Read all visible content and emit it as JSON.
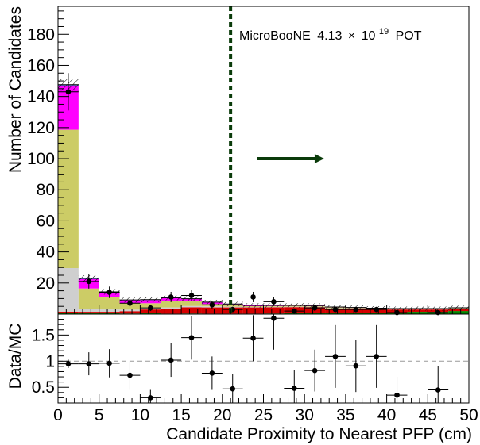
{
  "chart_data": [
    {
      "type": "bar",
      "subtype": "stacked-histogram-with-data-points",
      "annotation": {
        "experiment": "MicroBooNE",
        "exposure_value": "4.13",
        "times": "×",
        "exponent_base": "10",
        "exponent": "19",
        "unit": "POT"
      },
      "cut": {
        "x": 21,
        "direction": "right",
        "color": "#0a3b0a"
      },
      "ylabel": "Number of Candidates",
      "xlabel": "Candidate Proximity to Nearest PFP (cm)",
      "xlim": [
        0,
        50
      ],
      "ylim": [
        0,
        198
      ],
      "x_ticks": [
        0,
        5,
        10,
        15,
        20,
        25,
        30,
        35,
        40,
        45,
        50
      ],
      "y_ticks": [
        20,
        40,
        60,
        80,
        100,
        120,
        140,
        160,
        180
      ],
      "bin_edges": [
        0,
        2.5,
        5,
        7.5,
        10,
        12.5,
        15,
        17.5,
        20,
        22.5,
        25,
        27.5,
        30,
        32.5,
        35,
        37.5,
        40,
        42.5,
        45,
        47.5,
        50
      ],
      "stack_colors": [
        "#008800",
        "#d60000",
        "#cfcfcf",
        "#cccc66",
        "#ff00ff",
        "#6666cc"
      ],
      "stack": [
        [
          0.8,
          0.8,
          28,
          89,
          28,
          1
        ],
        [
          0.5,
          1,
          2,
          13,
          6,
          0.5
        ],
        [
          0.5,
          1,
          1.5,
          8,
          3,
          0.3
        ],
        [
          0.4,
          1.5,
          1,
          4,
          2,
          0.2
        ],
        [
          0.5,
          2.5,
          1,
          3,
          2,
          0.3
        ],
        [
          0.3,
          3,
          1,
          4,
          2,
          0.2
        ],
        [
          0.4,
          4,
          0.8,
          3,
          1.5,
          0.2
        ],
        [
          0.3,
          4,
          0.7,
          1.5,
          1,
          0.2
        ],
        [
          0.3,
          4,
          0.5,
          1,
          0.5,
          0.2
        ],
        [
          0.3,
          4,
          0.3,
          0.5,
          0.3,
          0.2
        ],
        [
          0.4,
          4,
          0.3,
          0.5,
          0.3,
          0.1
        ],
        [
          0.5,
          4,
          0.3,
          0.5,
          0.2,
          0.1
        ],
        [
          0.5,
          4,
          0.3,
          0.4,
          0.2,
          0.1
        ],
        [
          0.5,
          3,
          0.3,
          0.5,
          0.2,
          0.1
        ],
        [
          0.8,
          2.5,
          0.3,
          0.4,
          0.2,
          0.1
        ],
        [
          1,
          2,
          0.2,
          0.3,
          0.2,
          0.1
        ],
        [
          1,
          2,
          0.2,
          0.2,
          0.1,
          0.1
        ],
        [
          1.5,
          1.5,
          0.2,
          0.2,
          0.1,
          0.1
        ],
        [
          1.5,
          1.5,
          0.2,
          0.2,
          0.1,
          0.1
        ],
        [
          2,
          1.5,
          0.2,
          0.2,
          0.1,
          0.1
        ]
      ],
      "data": [
        {
          "x": 1.25,
          "y": 143,
          "err": 12
        },
        {
          "x": 3.75,
          "y": 21,
          "err": 4.6
        },
        {
          "x": 6.25,
          "y": 14,
          "err": 3.7
        },
        {
          "x": 8.75,
          "y": 7,
          "err": 2.6
        },
        {
          "x": 11.25,
          "y": 4,
          "err": 2
        },
        {
          "x": 13.75,
          "y": 11,
          "err": 3.3
        },
        {
          "x": 16.25,
          "y": 12,
          "err": 3.5
        },
        {
          "x": 18.75,
          "y": 6,
          "err": 2.4
        },
        {
          "x": 21.25,
          "y": 3,
          "err": 1.7
        },
        {
          "x": 23.75,
          "y": 11,
          "err": 3.3
        },
        {
          "x": 26.25,
          "y": 8,
          "err": 2.8
        },
        {
          "x": 28.75,
          "y": 2,
          "err": 1.4
        },
        {
          "x": 31.25,
          "y": 4,
          "err": 2
        },
        {
          "x": 33.75,
          "y": 3,
          "err": 1.7
        },
        {
          "x": 36.25,
          "y": 3,
          "err": 1.7
        },
        {
          "x": 38.75,
          "y": 3,
          "err": 1.7
        },
        {
          "x": 41.25,
          "y": 1,
          "err": 1
        },
        {
          "x": 46.25,
          "y": 1,
          "err": 1
        }
      ]
    },
    {
      "type": "scatter",
      "subtype": "ratio-panel",
      "ylabel": "Data/MC",
      "xlabel": "Candidate Proximity to Nearest PFP (cm)",
      "xlim": [
        0,
        50
      ],
      "ylim": [
        0.2,
        1.9
      ],
      "y_ticks": [
        0.5,
        1,
        1.5
      ],
      "y_tick_labels": [
        "0.5",
        "1",
        "1.5"
      ],
      "x_tick_labels": [
        "0",
        "5",
        "10",
        "15",
        "20",
        "25",
        "30",
        "35",
        "40",
        "45",
        "50"
      ],
      "reference_line": 1,
      "points": [
        {
          "x": 1.25,
          "y": 0.95,
          "err": 0.08
        },
        {
          "x": 3.75,
          "y": 0.95,
          "err": 0.22
        },
        {
          "x": 6.25,
          "y": 0.96,
          "err": 0.27
        },
        {
          "x": 8.75,
          "y": 0.73,
          "err": 0.28
        },
        {
          "x": 11.25,
          "y": 0.3,
          "err": 0.15
        },
        {
          "x": 13.75,
          "y": 1.02,
          "err": 0.32
        },
        {
          "x": 16.25,
          "y": 1.45,
          "err": 0.42
        },
        {
          "x": 18.75,
          "y": 0.77,
          "err": 0.32
        },
        {
          "x": 21.25,
          "y": 0.47,
          "err": 0.28
        },
        {
          "x": 23.75,
          "y": 1.44,
          "err": 0.44
        },
        {
          "x": 26.25,
          "y": 1.82,
          "err": 0.6
        },
        {
          "x": 28.75,
          "y": 0.48,
          "err": 0.35
        },
        {
          "x": 31.25,
          "y": 0.82,
          "err": 0.4
        },
        {
          "x": 33.75,
          "y": 1.09,
          "err": 0.6
        },
        {
          "x": 36.25,
          "y": 0.91,
          "err": 0.5
        },
        {
          "x": 38.75,
          "y": 1.09,
          "err": 0.6
        },
        {
          "x": 41.25,
          "y": 0.35,
          "err": 0.35
        },
        {
          "x": 46.25,
          "y": 0.45,
          "err": 0.45
        }
      ]
    }
  ]
}
